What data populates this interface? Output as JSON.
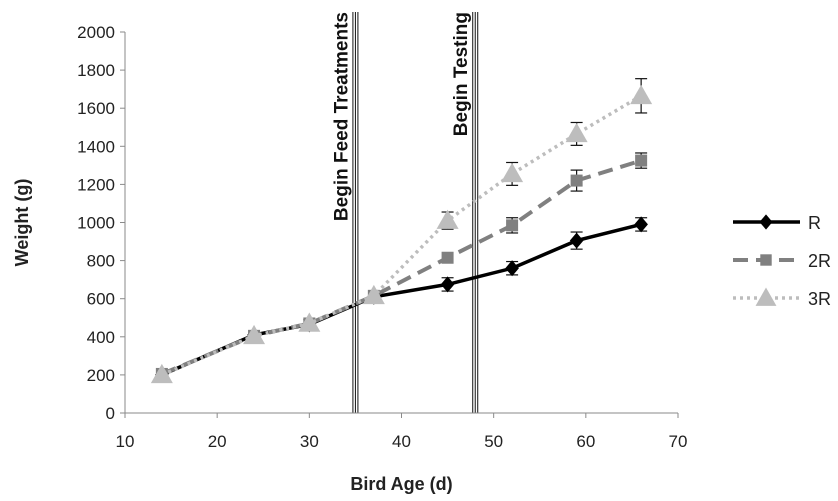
{
  "chart_data": {
    "type": "line",
    "xlabel": "Bird Age (d)",
    "ylabel": "Weight (g)",
    "xlim": [
      10,
      70
    ],
    "ylim": [
      0,
      2000
    ],
    "xticks": [
      10,
      20,
      30,
      40,
      50,
      60,
      70
    ],
    "yticks": [
      0,
      200,
      400,
      600,
      800,
      1000,
      1200,
      1400,
      1600,
      1800,
      2000
    ],
    "grid": false,
    "legend_position": "right",
    "annotations": [
      {
        "label": "Begin Feed Treatments",
        "x": 35
      },
      {
        "label": "Begin Testing",
        "x": 48
      }
    ],
    "series": [
      {
        "name": "R",
        "color": "#000000",
        "dash": "solid",
        "marker": "diamond",
        "x": [
          14,
          24,
          30,
          37,
          45,
          52,
          59,
          66
        ],
        "y": [
          200,
          410,
          465,
          610,
          675,
          760,
          905,
          990
        ],
        "err": [
          0,
          0,
          25,
          0,
          35,
          35,
          45,
          35
        ]
      },
      {
        "name": "2R",
        "color": "#808080",
        "dash": "dash",
        "marker": "square",
        "x": [
          14,
          24,
          30,
          37,
          45,
          52,
          59,
          66
        ],
        "y": [
          205,
          405,
          470,
          615,
          815,
          985,
          1220,
          1325
        ],
        "err": [
          0,
          0,
          0,
          0,
          0,
          40,
          55,
          40
        ]
      },
      {
        "name": "3R",
        "color": "#bdbdbd",
        "dash": "dot",
        "marker": "triangle",
        "x": [
          14,
          24,
          30,
          37,
          45,
          52,
          59,
          66
        ],
        "y": [
          200,
          405,
          470,
          615,
          1010,
          1255,
          1465,
          1665
        ],
        "err": [
          0,
          0,
          0,
          0,
          45,
          60,
          60,
          90
        ]
      }
    ]
  }
}
